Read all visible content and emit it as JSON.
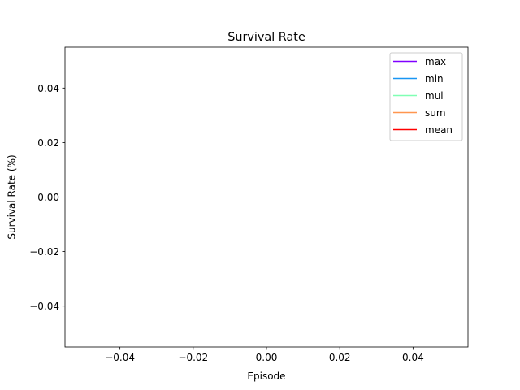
{
  "chart_data": {
    "type": "line",
    "title": "Survival Rate",
    "xlabel": "Episode",
    "ylabel": "Survival Rate (%)",
    "xlim": [
      -0.055,
      0.055
    ],
    "ylim": [
      -0.055,
      0.055
    ],
    "x_ticks": [
      -0.04,
      -0.02,
      0.0,
      0.02,
      0.04
    ],
    "x_tick_labels": [
      "−0.04",
      "−0.02",
      "0.00",
      "0.02",
      "0.04"
    ],
    "y_ticks": [
      0.04,
      0.02,
      0.0,
      -0.02,
      -0.04
    ],
    "y_tick_labels": [
      "0.04",
      "0.02",
      "0.00",
      "−0.02",
      "−0.04"
    ],
    "grid": false,
    "legend_position": "top-right",
    "series": [
      {
        "name": "max",
        "color": "#8000ff",
        "values": []
      },
      {
        "name": "min",
        "color": "#1996f3",
        "values": []
      },
      {
        "name": "mul",
        "color": "#80ffb4",
        "values": []
      },
      {
        "name": "sum",
        "color": "#ff964f",
        "values": []
      },
      {
        "name": "mean",
        "color": "#ff0000",
        "values": []
      }
    ]
  }
}
